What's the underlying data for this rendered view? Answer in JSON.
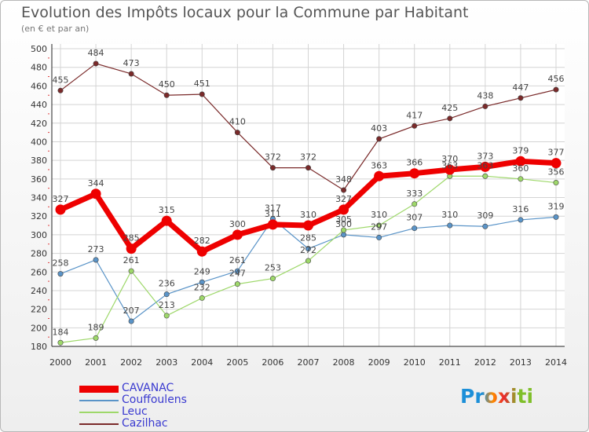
{
  "chart_data": {
    "type": "line",
    "title": "Evolution des Impôts locaux pour la Commune par Habitant",
    "subtitle": "(en € et par an)",
    "x": [
      "2000",
      "2001",
      "2002",
      "2003",
      "2004",
      "2005",
      "2006",
      "2007",
      "2008",
      "2009",
      "2010",
      "2011",
      "2012",
      "2013",
      "2014"
    ],
    "yticks": [
      180,
      200,
      220,
      240,
      260,
      280,
      300,
      320,
      340,
      360,
      380,
      400,
      420,
      440,
      460,
      480,
      500
    ],
    "ylim": [
      180,
      500
    ],
    "grid": true,
    "legend_position": "bottom-left",
    "series": [
      {
        "name": "CAVANAC",
        "color": "#ee0000",
        "values": [
          327,
          344,
          285,
          315,
          282,
          300,
          311,
          310,
          327,
          363,
          366,
          370,
          373,
          379,
          377
        ]
      },
      {
        "name": "Couffoulens",
        "color": "#5a94c8",
        "values": [
          258,
          273,
          207,
          236,
          249,
          261,
          317,
          285,
          300,
          297,
          307,
          310,
          309,
          316,
          319
        ]
      },
      {
        "name": "Leuc",
        "color": "#9ed86a",
        "values": [
          184,
          189,
          261,
          213,
          232,
          247,
          253,
          272,
          305,
          310,
          333,
          363,
          363,
          360,
          356
        ]
      },
      {
        "name": "Cazilhac",
        "color": "#7a2a2a",
        "values": [
          455,
          484,
          473,
          450,
          451,
          410,
          372,
          372,
          348,
          403,
          417,
          425,
          438,
          447,
          456
        ]
      }
    ],
    "data_labels": [
      {
        "series": 0,
        "values": [
          327,
          344,
          285,
          315,
          282,
          300,
          311,
          310,
          327,
          363,
          366,
          370,
          373,
          379,
          377
        ]
      },
      {
        "series": 1,
        "values": [
          258,
          273,
          207,
          236,
          249,
          261,
          317,
          285,
          300,
          297,
          307,
          310,
          309,
          316,
          319
        ]
      },
      {
        "series": 2,
        "values": [
          184,
          189,
          261,
          213,
          232,
          247,
          253,
          272,
          305,
          310,
          333,
          363,
          363,
          360,
          356
        ]
      },
      {
        "series": 3,
        "values": [
          455,
          484,
          473,
          450,
          451,
          410,
          372,
          372,
          348,
          403,
          417,
          425,
          438,
          447,
          456
        ]
      }
    ]
  },
  "logo": {
    "text": "Proxiti"
  }
}
